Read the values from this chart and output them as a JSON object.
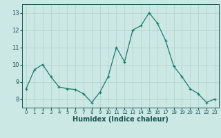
{
  "x": [
    0,
    1,
    2,
    3,
    4,
    5,
    6,
    7,
    8,
    9,
    10,
    11,
    12,
    13,
    14,
    15,
    16,
    17,
    18,
    19,
    20,
    21,
    22,
    23
  ],
  "y": [
    8.6,
    9.7,
    10.0,
    9.3,
    8.7,
    8.6,
    8.55,
    8.3,
    7.8,
    8.4,
    9.3,
    11.0,
    10.15,
    12.0,
    12.25,
    13.0,
    12.4,
    11.4,
    9.9,
    9.3,
    8.6,
    8.3,
    7.8,
    8.0
  ],
  "line_color": "#1a7a6e",
  "marker": "+",
  "marker_size": 3,
  "bg_color": "#cce8e4",
  "grid_color": "#b0d0cc",
  "xlabel": "Humidex (Indice chaleur)",
  "xlabel_fontsize": 7,
  "tick_color": "#1a5555",
  "ylim": [
    7.5,
    13.5
  ],
  "xlim": [
    -0.5,
    23.5
  ],
  "yticks": [
    8,
    9,
    10,
    11,
    12,
    13
  ],
  "xticks": [
    0,
    1,
    2,
    3,
    4,
    5,
    6,
    7,
    8,
    9,
    10,
    11,
    12,
    13,
    14,
    15,
    16,
    17,
    18,
    19,
    20,
    21,
    22,
    23
  ]
}
